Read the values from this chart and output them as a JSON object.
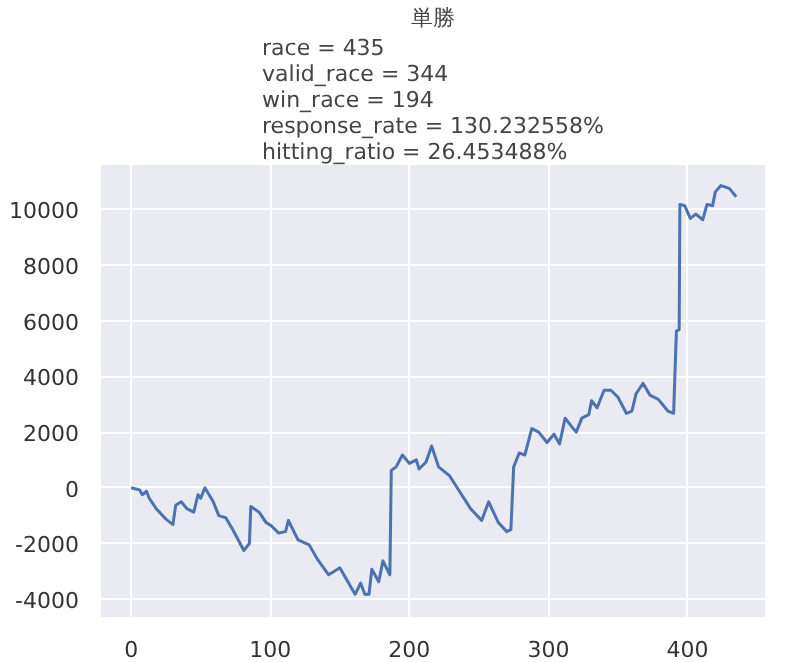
{
  "chart_data": {
    "type": "line",
    "title": "単勝",
    "subtitle": "race = 435\nvalid_race = 344\nwin_race = 194\nresponse_rate = 130.232558%\nhitting_ratio = 26.453488%",
    "series": [
      {
        "color": "#4c72b0",
        "x": [
          0,
          6,
          8,
          11,
          13,
          18,
          25,
          30,
          32,
          36,
          40,
          45,
          48,
          50,
          53,
          59,
          63,
          68,
          73,
          81,
          85,
          86,
          92,
          97,
          101,
          106,
          111,
          113,
          120,
          128,
          134,
          142,
          150,
          161,
          165,
          168,
          171,
          173,
          178,
          181,
          186,
          187,
          190.5,
          195,
          200,
          205,
          207,
          212,
          216,
          221,
          229,
          236,
          244,
          252,
          257,
          264,
          270,
          273,
          275,
          279,
          283,
          288,
          293,
          299,
          304,
          308,
          312,
          317,
          320,
          324,
          329,
          331,
          335,
          340,
          345,
          350,
          356,
          360,
          363,
          368,
          373,
          379,
          386,
          390,
          392,
          394,
          394.5,
          398,
          402,
          406,
          411,
          414,
          418,
          420,
          424,
          430,
          435
        ],
        "values": [
          0,
          -75,
          -250,
          -125,
          -375,
          -750,
          -1125,
          -1325,
          -625,
          -500,
          -750,
          -875,
          -250,
          -375,
          0,
          -500,
          -1000,
          -1075,
          -1500,
          -2250,
          -2000,
          -675,
          -875,
          -1250,
          -1375,
          -1625,
          -1575,
          -1175,
          -1875,
          -2050,
          -2575,
          -3125,
          -2875,
          -3825,
          -3425,
          -3825,
          -3825,
          -2925,
          -3375,
          -2625,
          -3125,
          625,
          750,
          1175,
          875,
          1000,
          675,
          925,
          1500,
          750,
          425,
          -125,
          -750,
          -1175,
          -500,
          -1250,
          -1575,
          -1500,
          750,
          1250,
          1175,
          2125,
          2000,
          1625,
          1925,
          1575,
          2500,
          2175,
          2000,
          2500,
          2625,
          3125,
          2875,
          3500,
          3500,
          3250,
          2675,
          2750,
          3375,
          3750,
          3325,
          3175,
          2750,
          2675,
          5625,
          5675,
          10175,
          10125,
          9675,
          9825,
          9625,
          10175,
          10125,
          10625,
          10850,
          10750,
          10450
        ]
      }
    ],
    "xlim": [
      -21.7,
      455.7
    ],
    "ylim": [
      -4640,
      11590
    ],
    "xticks": [
      0,
      100,
      200,
      300,
      400
    ],
    "yticks": [
      -4000,
      -2000,
      0,
      2000,
      4000,
      6000,
      8000,
      10000
    ],
    "grid": true,
    "line_style": "solid",
    "marker": "none"
  }
}
